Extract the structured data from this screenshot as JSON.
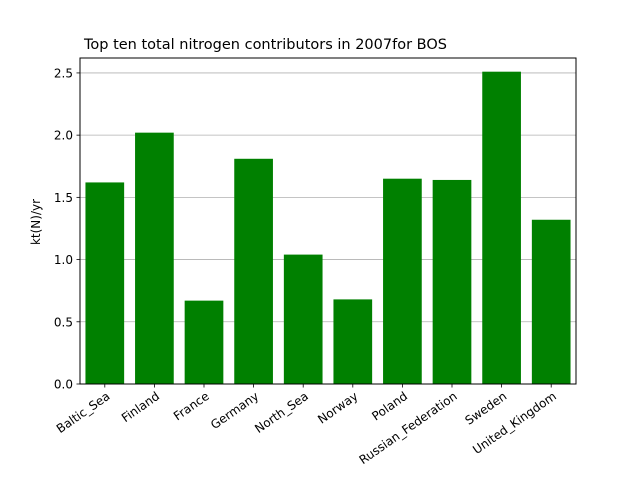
{
  "chart_data": {
    "type": "bar",
    "title": "Top ten total nitrogen contributors in 2007for  BOS",
    "xlabel": "",
    "ylabel": "kt(N)/yr",
    "categories": [
      "Baltic_Sea",
      "Finland",
      "France",
      "Germany",
      "North_Sea",
      "Norway",
      "Poland",
      "Russian_Federation",
      "Sweden",
      "United_Kingdom"
    ],
    "values": [
      1.62,
      2.02,
      0.67,
      1.81,
      1.04,
      0.68,
      1.65,
      1.64,
      2.51,
      1.32
    ],
    "ylim": [
      0,
      2.62
    ],
    "yticks": [
      "0.0",
      "0.5",
      "1.0",
      "1.5",
      "2.0",
      "2.5"
    ],
    "grid": "horizontal",
    "bar_color": "#008000"
  }
}
